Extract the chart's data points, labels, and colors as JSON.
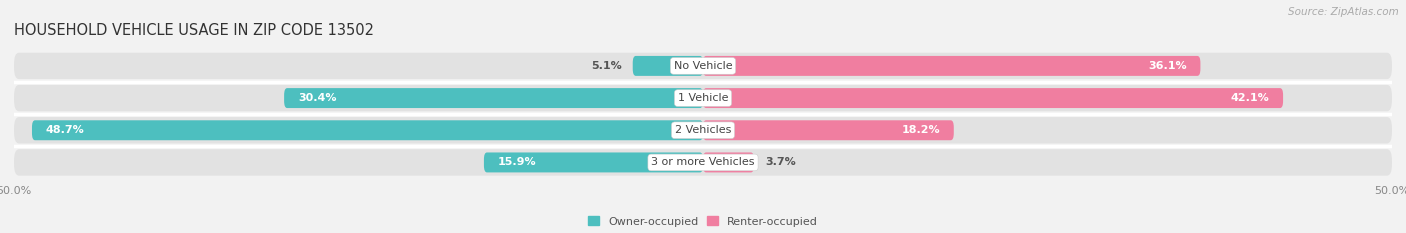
{
  "title": "HOUSEHOLD VEHICLE USAGE IN ZIP CODE 13502",
  "source": "Source: ZipAtlas.com",
  "categories": [
    "No Vehicle",
    "1 Vehicle",
    "2 Vehicles",
    "3 or more Vehicles"
  ],
  "owner_values": [
    5.1,
    30.4,
    48.7,
    15.9
  ],
  "renter_values": [
    36.1,
    42.1,
    18.2,
    3.7
  ],
  "owner_color": "#4DBFBF",
  "renter_color": "#F07EA0",
  "owner_label": "Owner-occupied",
  "renter_label": "Renter-occupied",
  "xlim_data": [
    -50,
    50
  ],
  "bar_height": 0.62,
  "bg_bar_height": 0.82,
  "background_color": "#f2f2f2",
  "bar_bg_color": "#e2e2e2",
  "label_font_size": 8.0,
  "title_font_size": 10.5,
  "source_font_size": 7.5,
  "value_threshold": 10
}
